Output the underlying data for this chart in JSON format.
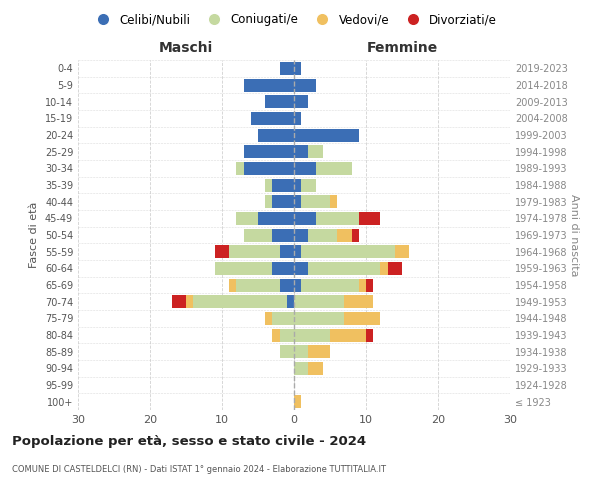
{
  "age_groups": [
    "100+",
    "95-99",
    "90-94",
    "85-89",
    "80-84",
    "75-79",
    "70-74",
    "65-69",
    "60-64",
    "55-59",
    "50-54",
    "45-49",
    "40-44",
    "35-39",
    "30-34",
    "25-29",
    "20-24",
    "15-19",
    "10-14",
    "5-9",
    "0-4"
  ],
  "birth_years": [
    "≤ 1923",
    "1924-1928",
    "1929-1933",
    "1934-1938",
    "1939-1943",
    "1944-1948",
    "1949-1953",
    "1954-1958",
    "1959-1963",
    "1964-1968",
    "1969-1973",
    "1974-1978",
    "1979-1983",
    "1984-1988",
    "1989-1993",
    "1994-1998",
    "1999-2003",
    "2004-2008",
    "2009-2013",
    "2014-2018",
    "2019-2023"
  ],
  "maschi": {
    "celibi": [
      0,
      0,
      0,
      0,
      0,
      0,
      1,
      2,
      3,
      2,
      3,
      5,
      3,
      3,
      7,
      7,
      5,
      6,
      4,
      7,
      2
    ],
    "coniugati": [
      0,
      0,
      0,
      2,
      2,
      3,
      13,
      6,
      8,
      7,
      4,
      3,
      1,
      1,
      1,
      0,
      0,
      0,
      0,
      0,
      0
    ],
    "vedovi": [
      0,
      0,
      0,
      0,
      1,
      1,
      1,
      1,
      0,
      0,
      0,
      0,
      0,
      0,
      0,
      0,
      0,
      0,
      0,
      0,
      0
    ],
    "divorziati": [
      0,
      0,
      0,
      0,
      0,
      0,
      2,
      0,
      0,
      2,
      0,
      0,
      0,
      0,
      0,
      0,
      0,
      0,
      0,
      0,
      0
    ]
  },
  "femmine": {
    "nubili": [
      0,
      0,
      0,
      0,
      0,
      0,
      0,
      1,
      2,
      1,
      2,
      3,
      1,
      1,
      3,
      2,
      9,
      1,
      2,
      3,
      1
    ],
    "coniugate": [
      0,
      0,
      2,
      2,
      5,
      7,
      7,
      8,
      10,
      13,
      4,
      6,
      4,
      2,
      5,
      2,
      0,
      0,
      0,
      0,
      0
    ],
    "vedove": [
      1,
      0,
      2,
      3,
      5,
      5,
      4,
      1,
      1,
      2,
      2,
      0,
      1,
      0,
      0,
      0,
      0,
      0,
      0,
      0,
      0
    ],
    "divorziate": [
      0,
      0,
      0,
      0,
      1,
      0,
      0,
      1,
      2,
      0,
      1,
      3,
      0,
      0,
      0,
      0,
      0,
      0,
      0,
      0,
      0
    ]
  },
  "colors": {
    "celibi_nubili": "#3b6eb5",
    "coniugati": "#c5d9a0",
    "vedovi": "#f0c060",
    "divorziati": "#cc2222"
  },
  "title1": "Popolazione per età, sesso e stato civile - 2024",
  "title2": "COMUNE DI CASTELDELCI (RN) - Dati ISTAT 1° gennaio 2024 - Elaborazione TUTTITALIA.IT",
  "xlabel_left": "Maschi",
  "xlabel_right": "Femmine",
  "ylabel_left": "Fasce di età",
  "ylabel_right": "Anni di nascita",
  "xlim": 30,
  "legend_labels": [
    "Celibi/Nubili",
    "Coniugati/e",
    "Vedovi/e",
    "Divorziati/e"
  ],
  "background_color": "#ffffff",
  "grid_color": "#cccccc"
}
